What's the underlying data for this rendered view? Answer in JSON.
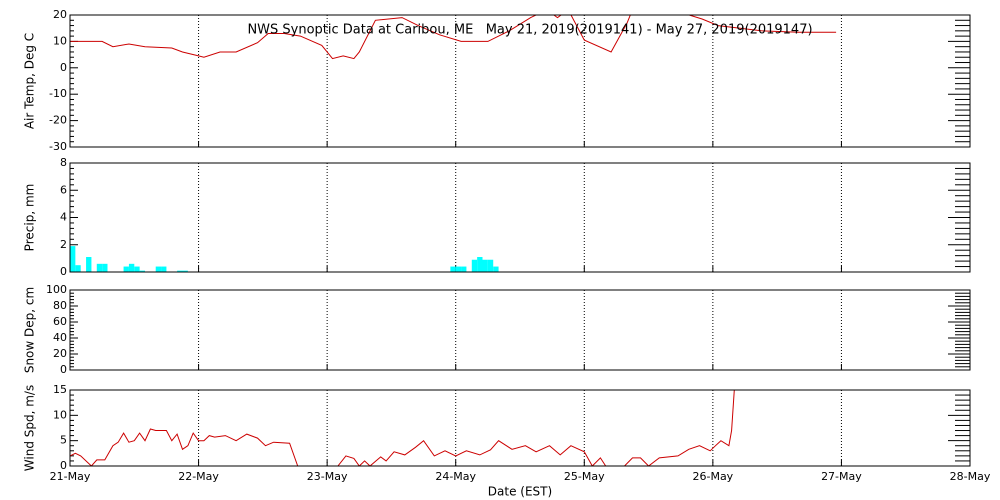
{
  "chart_data": [
    {
      "type": "line",
      "title": "NWS Synoptic Data at Caribou, ME   May 21, 2019(2019141) - May 27, 2019(2019147)",
      "ylabel": "Air Temp, Deg C",
      "color": "#cc0000",
      "grid": "x",
      "x": [
        0,
        6,
        8,
        11,
        14,
        19,
        21,
        24,
        25,
        28,
        31,
        35,
        37,
        40,
        43,
        47,
        49,
        51,
        53,
        54,
        57,
        62,
        65,
        69,
        73,
        78,
        82,
        86,
        88,
        90,
        91,
        93,
        96,
        101,
        104,
        105,
        114,
        118,
        121,
        129,
        136,
        143
      ],
      "values": [
        10,
        10,
        8,
        9,
        8,
        7.5,
        6,
        4.5,
        4,
        6,
        6,
        9.5,
        13,
        13,
        12,
        8.5,
        3.5,
        4.5,
        3.5,
        6,
        18,
        19,
        16,
        12.5,
        10,
        10,
        14,
        19,
        21,
        20.5,
        19,
        22,
        10.5,
        6,
        17,
        22,
        21,
        18.5,
        16,
        14,
        13.5,
        13.5
      ],
      "xlim": [
        0,
        168
      ],
      "xticks": [
        0,
        24,
        48,
        72,
        96,
        120,
        144,
        168
      ],
      "ylim": [
        -30,
        20
      ],
      "yticks": [
        -30,
        -20,
        -10,
        0,
        10,
        20
      ]
    },
    {
      "type": "bar",
      "ylabel": "Precip, mm",
      "color": "#00ffff",
      "grid": "x",
      "x": [
        0,
        1,
        3,
        5,
        6,
        10,
        11,
        12,
        13,
        16,
        17,
        20,
        21,
        71,
        72,
        73,
        75,
        76,
        77,
        78,
        79
      ],
      "values": [
        1.9,
        0.5,
        1.1,
        0.6,
        0.6,
        0.4,
        0.6,
        0.4,
        0.1,
        0.4,
        0.4,
        0.1,
        0.1,
        0.4,
        0.4,
        0.4,
        0.9,
        1.1,
        0.9,
        0.9,
        0.4
      ],
      "xlim": [
        0,
        168
      ],
      "xticks": [
        0,
        24,
        48,
        72,
        96,
        120,
        144,
        168
      ],
      "ylim": [
        0,
        8
      ],
      "yticks": [
        0,
        2,
        4,
        6,
        8
      ]
    },
    {
      "type": "line",
      "ylabel": "Snow Dep, cm",
      "color": "#cc0000",
      "grid": "x",
      "x": [],
      "values": [],
      "xlim": [
        0,
        168
      ],
      "xticks": [
        0,
        24,
        48,
        72,
        96,
        120,
        144,
        168
      ],
      "ylim": [
        0,
        100
      ],
      "yticks": [
        0,
        20,
        40,
        60,
        80,
        100
      ]
    },
    {
      "type": "line",
      "ylabel": "Wind Spd, m/s",
      "xlabel": "Date (EST)",
      "color": "#cc0000",
      "grid": "x",
      "x": [
        0,
        1,
        2,
        4,
        5,
        6.5,
        8,
        9,
        10,
        11,
        12,
        13,
        14,
        15,
        16,
        18,
        19,
        20,
        21,
        22,
        23,
        24,
        25,
        26,
        27,
        29,
        31,
        33,
        35,
        36.5,
        38,
        41,
        42.5,
        50,
        51.5,
        53,
        54,
        55,
        56,
        58,
        59,
        60.5,
        62.5,
        64.5,
        66,
        68,
        70,
        72,
        74,
        76.5,
        78.5,
        80,
        82.5,
        85,
        87,
        89.5,
        91.5,
        93.5,
        96,
        97.5,
        99,
        100,
        103.5,
        105,
        106.5,
        108,
        110,
        113.5,
        115.5,
        117.5,
        119.5,
        120.5,
        121.5,
        123,
        123.5,
        124
      ],
      "values": [
        2,
        2.5,
        2,
        0,
        1.2,
        1.2,
        4,
        4.7,
        6.5,
        4.7,
        5,
        6.5,
        5,
        7.3,
        7,
        7,
        5,
        6.3,
        3.3,
        4,
        6.5,
        5,
        5,
        6,
        5.7,
        6,
        5,
        6.3,
        5.5,
        4,
        4.7,
        4.5,
        0,
        0,
        2,
        1.5,
        0,
        1,
        0,
        1.8,
        1,
        2.8,
        2.2,
        3.7,
        5,
        2,
        3,
        2,
        3,
        2.2,
        3.2,
        5,
        3.3,
        4,
        2.8,
        4,
        2.2,
        4,
        2.8,
        0,
        1.6,
        0,
        0,
        1.6,
        1.6,
        0,
        1.6,
        2,
        3.3,
        4,
        3,
        4,
        5,
        4,
        7,
        15
      ],
      "xlim": [
        0,
        168
      ],
      "xticks": [
        {
          "value": 0,
          "label": "21-May"
        },
        {
          "value": 24,
          "label": "22-May"
        },
        {
          "value": 48,
          "label": "23-May"
        },
        {
          "value": 72,
          "label": "24-May"
        },
        {
          "value": 96,
          "label": "25-May"
        },
        {
          "value": 120,
          "label": "26-May"
        },
        {
          "value": 144,
          "label": "27-May"
        },
        {
          "value": 168,
          "label": "28-May"
        }
      ],
      "ylim": [
        0,
        15
      ],
      "yticks": [
        0,
        5,
        10,
        15
      ]
    }
  ]
}
